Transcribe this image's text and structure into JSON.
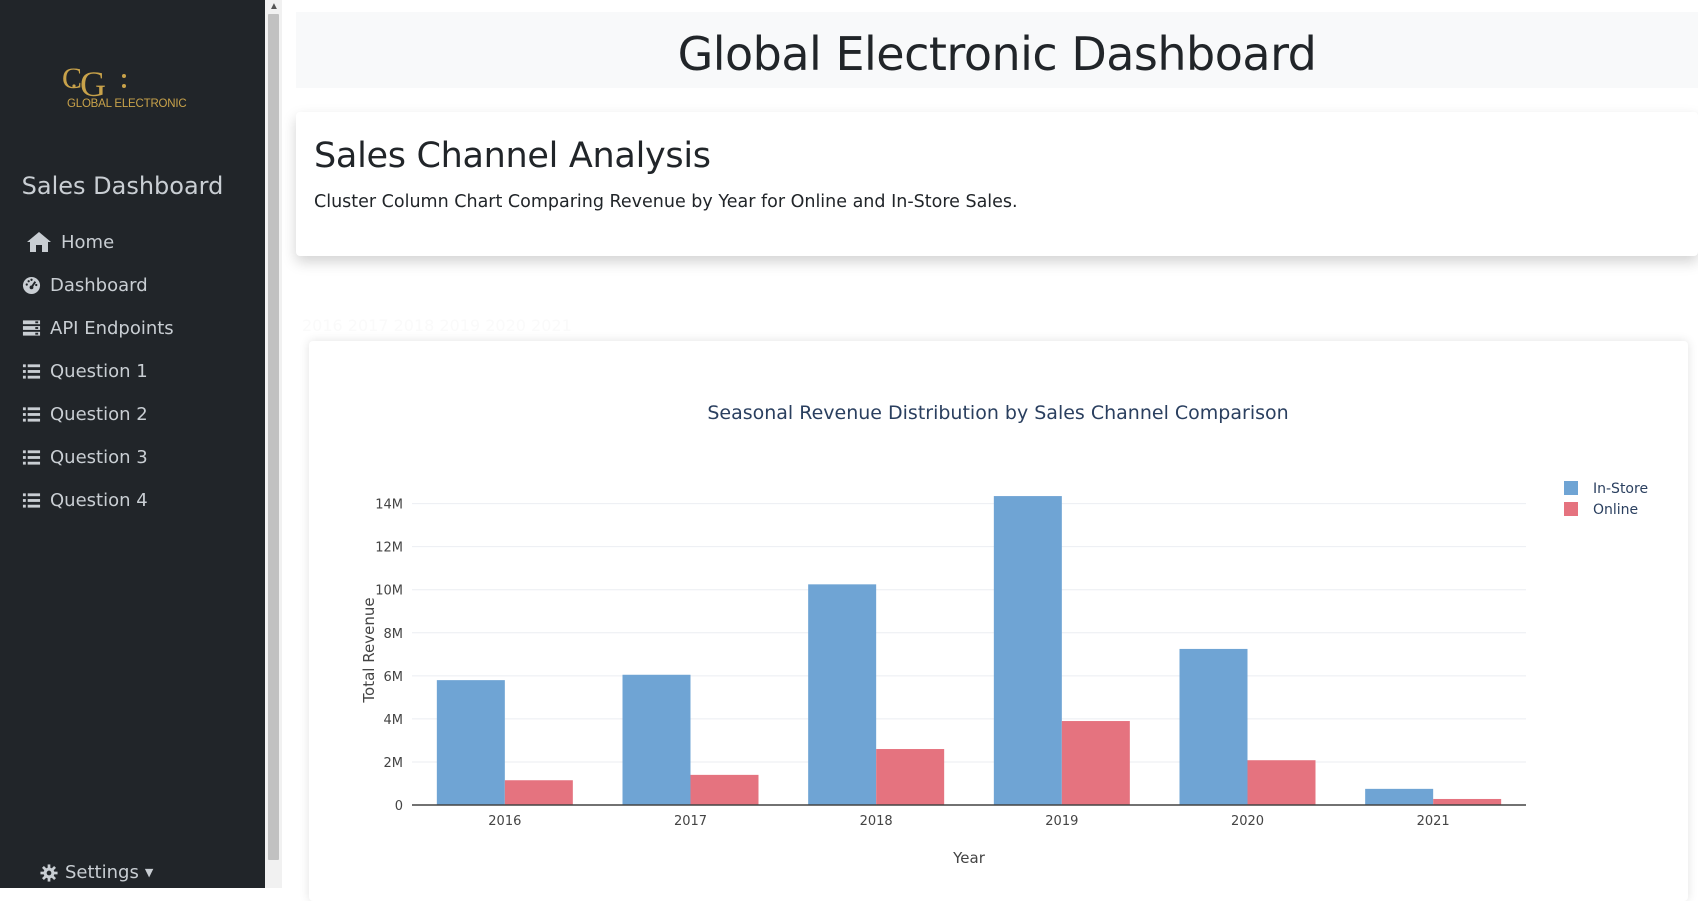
{
  "sidebar": {
    "logo_text": "GLOBAL ELECTRONIC",
    "title": "Sales Dashboard",
    "items": [
      {
        "label": "Home",
        "icon": "home-icon"
      },
      {
        "label": "Dashboard",
        "icon": "gauge-icon"
      },
      {
        "label": "API Endpoints",
        "icon": "server-icon"
      },
      {
        "label": "Question 1",
        "icon": "list-icon"
      },
      {
        "label": "Question 2",
        "icon": "list-icon"
      },
      {
        "label": "Question 3",
        "icon": "list-icon"
      },
      {
        "label": "Question 4",
        "icon": "list-icon"
      }
    ],
    "settings_label": "Settings",
    "accent_color": "#c8a24a",
    "background_color": "#212529"
  },
  "header": {
    "title": "Global Electronic Dashboard"
  },
  "section": {
    "title": "Sales Channel Analysis",
    "description": "Cluster Column Chart Comparing Revenue by Year for Online and In-Store Sales.",
    "year_filter": "2016 2017 2018 2019 2020 2021"
  },
  "chart_data": {
    "type": "bar",
    "title": "Seasonal Revenue Distribution by Sales Channel Comparison",
    "xlabel": "Year",
    "ylabel": "Total Revenue",
    "categories": [
      "2016",
      "2017",
      "2018",
      "2019",
      "2020",
      "2021"
    ],
    "series": [
      {
        "name": "In-Store",
        "color": "#6fa4d4",
        "values": [
          5800000,
          6050000,
          10250000,
          14350000,
          7250000,
          750000
        ]
      },
      {
        "name": "Online",
        "color": "#e5737f",
        "values": [
          1150000,
          1400000,
          2600000,
          3900000,
          2080000,
          280000
        ]
      }
    ],
    "ylim": [
      0,
      14400000
    ],
    "yticks": [
      0,
      2000000,
      4000000,
      6000000,
      8000000,
      10000000,
      12000000,
      14000000
    ],
    "ytick_labels": [
      "0",
      "2M",
      "4M",
      "6M",
      "8M",
      "10M",
      "12M",
      "14M"
    ],
    "grid": true,
    "legend_position": "top-right"
  }
}
